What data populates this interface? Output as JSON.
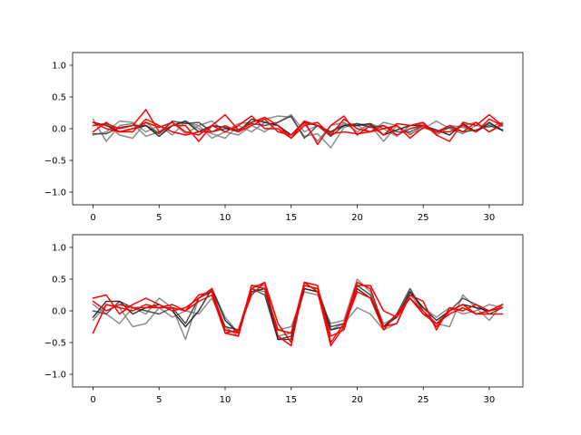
{
  "chart_data": [
    {
      "type": "line",
      "title": "",
      "xlabel": "",
      "ylabel": "",
      "xlim": [
        -1.55,
        32.55
      ],
      "ylim": [
        -1.2,
        1.2
      ],
      "x_ticks": [
        0,
        5,
        10,
        15,
        20,
        25,
        30
      ],
      "y_ticks": [
        -1.0,
        -0.5,
        0.0,
        0.5,
        1.0
      ],
      "x_tick_labels": [
        "0",
        "5",
        "10",
        "15",
        "20",
        "25",
        "30"
      ],
      "y_tick_labels": [
        "−1.0",
        "−0.5",
        "0.0",
        "0.5",
        "1.0"
      ],
      "grid": false,
      "legend": "none",
      "x": [
        0,
        1,
        2,
        3,
        4,
        5,
        6,
        7,
        8,
        9,
        10,
        11,
        12,
        13,
        14,
        15,
        16,
        17,
        18,
        19,
        20,
        21,
        22,
        23,
        24,
        25,
        26,
        27,
        28,
        29,
        30,
        31
      ],
      "series": [
        {
          "color": "#808080",
          "values": [
            0.15,
            -0.2,
            0.05,
            0.08,
            -0.12,
            -0.05,
            0.1,
            -0.08,
            0.05,
            -0.15,
            -0.05,
            0.08,
            0.1,
            0.15,
            0.2,
            0.18,
            -0.12,
            -0.08,
            -0.3,
            0.02,
            0.08,
            0.05,
            -0.2,
            0.05,
            -0.1,
            0.05,
            -0.08,
            0.05,
            0.02,
            -0.05,
            0.08,
            -0.02
          ]
        },
        {
          "color": "#808080",
          "values": [
            -0.1,
            -0.05,
            0.12,
            0.1,
            -0.05,
            0.05,
            -0.1,
            0.12,
            0.0,
            -0.08,
            -0.15,
            0.05,
            -0.05,
            0.1,
            0.05,
            -0.1,
            0.08,
            -0.2,
            0.05,
            0.1,
            -0.05,
            0.08,
            0.0,
            -0.12,
            0.05,
            0.08,
            -0.1,
            0.02,
            0.05,
            0.1,
            -0.05,
            0.05
          ]
        },
        {
          "color": "#808080",
          "values": [
            0.05,
            0.08,
            -0.1,
            -0.15,
            0.1,
            -0.08,
            0.05,
            0.1,
            0.05,
            0.12,
            -0.05,
            -0.1,
            0.05,
            -0.05,
            0.1,
            0.22,
            -0.05,
            0.05,
            -0.05,
            0.08,
            0.05,
            -0.05,
            0.1,
            0.05,
            -0.08,
            0.0,
            0.12,
            0.0,
            -0.08,
            0.05,
            0.02,
            0.1
          ]
        },
        {
          "color": "#404040",
          "values": [
            -0.08,
            -0.08,
            0.02,
            0.05,
            0.05,
            -0.08,
            0.12,
            0.08,
            0.1,
            -0.05,
            0.0,
            -0.02,
            0.08,
            0.05,
            0.1,
            0.2,
            -0.15,
            0.05,
            -0.12,
            0.05,
            0.08,
            0.02,
            0.05,
            -0.05,
            -0.05,
            0.05,
            -0.05,
            0.02,
            -0.05,
            -0.02,
            0.05,
            -0.02
          ]
        },
        {
          "color": "#202020",
          "values": [
            0.1,
            0.05,
            -0.05,
            0.0,
            0.05,
            -0.12,
            0.05,
            0.12,
            -0.05,
            0.05,
            0.02,
            -0.05,
            0.15,
            0.1,
            0.05,
            -0.1,
            0.1,
            0.05,
            -0.05,
            0.05,
            0.05,
            0.08,
            -0.1,
            -0.02,
            0.05,
            0.05,
            -0.02,
            -0.1,
            0.08,
            -0.05,
            0.1,
            -0.03
          ]
        },
        {
          "color": "#ff0000",
          "values": [
            0.05,
            0.08,
            0.0,
            0.05,
            0.3,
            -0.05,
            0.05,
            0.05,
            -0.2,
            0.05,
            0.22,
            -0.02,
            0.1,
            0.18,
            0.05,
            -0.15,
            0.12,
            -0.25,
            0.05,
            0.2,
            -0.1,
            0.05,
            -0.1,
            0.08,
            0.05,
            0.1,
            -0.1,
            -0.2,
            0.1,
            0.05,
            0.22,
            0.05
          ]
        },
        {
          "color": "#ff0000",
          "values": [
            -0.05,
            0.1,
            -0.05,
            0.0,
            0.1,
            0.02,
            0.1,
            -0.05,
            -0.1,
            0.05,
            -0.05,
            0.05,
            0.2,
            0.0,
            0.0,
            -0.15,
            0.05,
            0.1,
            -0.1,
            0.15,
            0.0,
            -0.05,
            0.05,
            -0.1,
            0.0,
            0.05,
            -0.05,
            -0.05,
            0.05,
            -0.05,
            0.15,
            0.05
          ]
        },
        {
          "color": "#ff0000",
          "values": [
            0.1,
            0.0,
            -0.05,
            -0.05,
            0.15,
            0.05,
            -0.05,
            -0.1,
            -0.05,
            -0.05,
            0.05,
            -0.05,
            0.05,
            0.15,
            -0.05,
            -0.1,
            0.12,
            0.05,
            -0.08,
            -0.05,
            -0.08,
            -0.05,
            0.0,
            0.05,
            -0.15,
            0.02,
            -0.05,
            0.05,
            -0.05,
            0.1,
            -0.05,
            0.08
          ]
        }
      ]
    },
    {
      "type": "line",
      "title": "",
      "xlabel": "",
      "ylabel": "",
      "xlim": [
        -1.55,
        32.55
      ],
      "ylim": [
        -1.2,
        1.2
      ],
      "x_ticks": [
        0,
        5,
        10,
        15,
        20,
        25,
        30
      ],
      "y_ticks": [
        -1.0,
        -0.5,
        0.0,
        0.5,
        1.0
      ],
      "x_tick_labels": [
        "0",
        "5",
        "10",
        "15",
        "20",
        "25",
        "30"
      ],
      "y_tick_labels": [
        "−1.0",
        "−0.5",
        "0.0",
        "0.5",
        "1.0"
      ],
      "grid": false,
      "legend": "none",
      "x": [
        0,
        1,
        2,
        3,
        4,
        5,
        6,
        7,
        8,
        9,
        10,
        11,
        12,
        13,
        14,
        15,
        16,
        17,
        18,
        19,
        20,
        21,
        22,
        23,
        24,
        25,
        26,
        27,
        28,
        29,
        30,
        31
      ],
      "series": [
        {
          "color": "#808080",
          "values": [
            0.1,
            -0.05,
            -0.2,
            0.05,
            -0.05,
            0.2,
            0.05,
            -0.45,
            0.2,
            0.35,
            -0.1,
            -0.35,
            0.35,
            0.3,
            -0.3,
            -0.25,
            0.3,
            0.25,
            -0.2,
            -0.15,
            0.5,
            0.3,
            -0.2,
            -0.1,
            0.25,
            0.05,
            -0.1,
            0.05,
            -0.05,
            0.0,
            0.1,
            0.05
          ]
        },
        {
          "color": "#808080",
          "values": [
            -0.15,
            0.1,
            0.05,
            -0.25,
            -0.2,
            0.05,
            -0.1,
            0.0,
            -0.05,
            0.2,
            -0.25,
            -0.4,
            0.4,
            0.4,
            -0.4,
            -0.35,
            0.35,
            0.3,
            -0.3,
            -0.2,
            0.05,
            -0.05,
            -0.3,
            -0.2,
            0.3,
            -0.05,
            -0.2,
            -0.25,
            0.25,
            0.05,
            -0.15,
            0.1
          ]
        },
        {
          "color": "#404040",
          "values": [
            0.0,
            -0.05,
            0.15,
            0.05,
            0.0,
            -0.05,
            0.05,
            -0.2,
            0.2,
            0.3,
            -0.25,
            -0.3,
            0.35,
            0.25,
            -0.45,
            -0.4,
            0.4,
            0.35,
            -0.25,
            -0.2,
            0.4,
            0.25,
            -0.25,
            -0.05,
            0.35,
            0.0,
            -0.2,
            0.0,
            0.2,
            0.1,
            -0.05,
            0.05
          ]
        },
        {
          "color": "#202020",
          "values": [
            -0.1,
            0.15,
            0.15,
            -0.05,
            0.05,
            0.1,
            0.0,
            -0.25,
            0.0,
            0.35,
            -0.15,
            -0.35,
            0.3,
            0.35,
            -0.45,
            -0.45,
            0.35,
            0.3,
            -0.3,
            -0.25,
            0.35,
            0.2,
            -0.25,
            -0.1,
            0.3,
            0.05,
            -0.15,
            0.0,
            0.1,
            0.05,
            0.0,
            0.1
          ]
        },
        {
          "color": "#ff0000",
          "values": [
            0.2,
            0.25,
            -0.05,
            0.1,
            0.2,
            0.1,
            0.0,
            0.05,
            0.2,
            0.35,
            -0.35,
            -0.4,
            0.35,
            0.45,
            -0.4,
            -0.55,
            0.45,
            0.4,
            -0.5,
            -0.2,
            0.45,
            0.35,
            -0.25,
            -0.2,
            0.25,
            0.15,
            -0.3,
            0.05,
            0.0,
            0.1,
            0.0,
            0.05
          ]
        },
        {
          "color": "#ff0000",
          "values": [
            -0.35,
            0.1,
            0.05,
            0.0,
            0.1,
            0.05,
            0.05,
            0.0,
            0.25,
            0.3,
            -0.3,
            -0.35,
            0.4,
            0.35,
            -0.3,
            -0.35,
            0.45,
            0.3,
            -0.55,
            -0.25,
            0.3,
            0.2,
            -0.3,
            -0.05,
            0.2,
            0.0,
            -0.25,
            0.0,
            0.1,
            -0.05,
            0.0,
            0.1
          ]
        },
        {
          "color": "#ff0000",
          "values": [
            0.15,
            0.0,
            0.1,
            0.05,
            0.05,
            0.05,
            0.1,
            0.0,
            0.15,
            0.25,
            -0.35,
            -0.3,
            0.25,
            0.45,
            -0.2,
            -0.5,
            0.4,
            0.35,
            -0.4,
            -0.3,
            0.4,
            0.4,
            0.0,
            -0.1,
            0.2,
            -0.05,
            -0.2,
            -0.05,
            0.05,
            -0.05,
            -0.05,
            -0.05
          ]
        }
      ]
    }
  ]
}
